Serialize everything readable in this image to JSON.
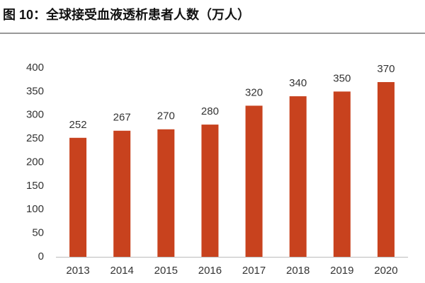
{
  "chart_data": {
    "type": "bar",
    "title": "图 10：全球接受血液透析患者人数（万人）",
    "categories": [
      "2013",
      "2014",
      "2015",
      "2016",
      "2017",
      "2018",
      "2019",
      "2020"
    ],
    "values": [
      252,
      267,
      270,
      280,
      320,
      340,
      350,
      370
    ],
    "color": "#c8421e",
    "ylim": [
      0,
      400
    ],
    "yticks": [
      0,
      50,
      100,
      150,
      200,
      250,
      300,
      350,
      400
    ],
    "grid": false
  }
}
